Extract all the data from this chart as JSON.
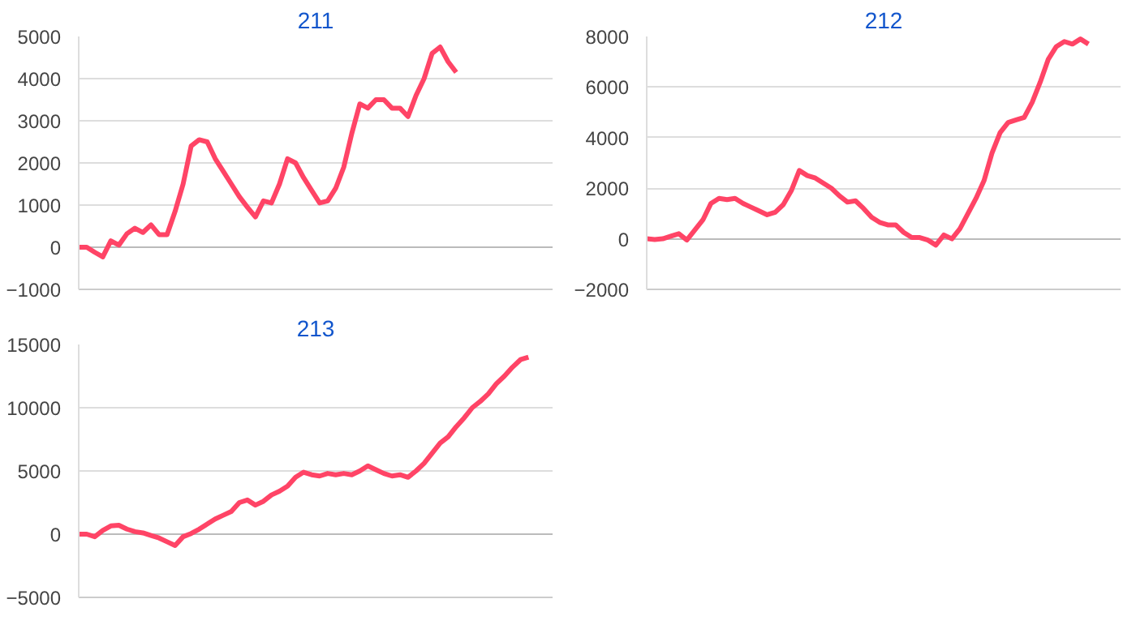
{
  "chart_data": [
    {
      "type": "line",
      "title": "211",
      "categories": [
        null,
        null,
        null,
        null,
        null,
        null,
        null,
        null,
        null,
        null,
        null,
        null,
        null,
        null,
        null,
        null,
        null,
        null,
        null,
        null,
        null,
        null,
        null,
        null,
        null,
        null,
        null,
        null,
        null,
        null,
        null,
        null,
        null,
        null,
        null,
        null,
        null,
        null,
        null,
        null,
        null,
        null,
        null,
        null,
        null,
        null,
        null,
        null,
        null,
        null,
        null,
        null,
        null,
        null,
        null,
        null,
        null,
        null,
        null,
        null
      ],
      "values": [
        0,
        0,
        -120,
        -230,
        150,
        50,
        320,
        450,
        350,
        530,
        300,
        300,
        850,
        1500,
        2400,
        2550,
        2500,
        2100,
        1800,
        1500,
        1200,
        950,
        720,
        1100,
        1050,
        1500,
        2100,
        2000,
        1650,
        1350,
        1050,
        1100,
        1400,
        1900,
        2700,
        3400,
        3300,
        3500,
        3500,
        3300,
        3300,
        3100,
        3600,
        4000,
        4600,
        4750,
        4400,
        4150,
        null,
        null,
        null,
        null,
        null,
        null,
        null,
        null,
        null,
        null,
        null,
        null
      ],
      "color": "#ff4466",
      "ylim": [
        -1000,
        5000
      ],
      "yticks": [
        -1000,
        0,
        1000,
        2000,
        3000,
        4000,
        5000
      ],
      "grid": "y"
    },
    {
      "type": "line",
      "title": "212",
      "categories": [
        null,
        null,
        null,
        null,
        null,
        null,
        null,
        null,
        null,
        null,
        null,
        null,
        null,
        null,
        null,
        null,
        null,
        null,
        null,
        null,
        null,
        null,
        null,
        null,
        null,
        null,
        null,
        null,
        null,
        null,
        null,
        null,
        null,
        null,
        null,
        null,
        null,
        null,
        null,
        null,
        null,
        null,
        null,
        null,
        null,
        null,
        null,
        null,
        null,
        null,
        null,
        null,
        null,
        null,
        null,
        null,
        null,
        null,
        null,
        null
      ],
      "values": [
        0,
        -30,
        0,
        100,
        200,
        -50,
        350,
        750,
        1400,
        1600,
        1550,
        1600,
        1400,
        1250,
        1100,
        950,
        1050,
        1350,
        1900,
        2700,
        2500,
        2400,
        2200,
        2000,
        1700,
        1450,
        1500,
        1200,
        850,
        650,
        550,
        550,
        250,
        50,
        50,
        -50,
        -250,
        150,
        0,
        400,
        1000,
        1600,
        2300,
        3400,
        4200,
        4600,
        4700,
        4800,
        5400,
        6200,
        7100,
        7600,
        7800,
        7700,
        7900,
        7700,
        null,
        null,
        null,
        null
      ],
      "color": "#ff4466",
      "ylim": [
        -2000,
        8000
      ],
      "yticks": [
        -2000,
        0,
        2000,
        4000,
        6000,
        8000
      ],
      "grid": "y"
    },
    {
      "type": "line",
      "title": "213",
      "categories": [
        null,
        null,
        null,
        null,
        null,
        null,
        null,
        null,
        null,
        null,
        null,
        null,
        null,
        null,
        null,
        null,
        null,
        null,
        null,
        null,
        null,
        null,
        null,
        null,
        null,
        null,
        null,
        null,
        null,
        null,
        null,
        null,
        null,
        null,
        null,
        null,
        null,
        null,
        null,
        null,
        null,
        null,
        null,
        null,
        null,
        null,
        null,
        null,
        null,
        null,
        null,
        null,
        null,
        null,
        null,
        null,
        null,
        null,
        null,
        null
      ],
      "values": [
        0,
        0,
        -200,
        300,
        650,
        700,
        400,
        200,
        100,
        -100,
        -300,
        -600,
        -900,
        -200,
        50,
        400,
        800,
        1200,
        1500,
        1800,
        2500,
        2700,
        2300,
        2600,
        3100,
        3400,
        3800,
        4500,
        4900,
        4700,
        4600,
        4800,
        4700,
        4800,
        4700,
        5000,
        5400,
        5100,
        4800,
        4600,
        4700,
        4500,
        5000,
        5600,
        6400,
        7200,
        7700,
        8500,
        9200,
        10000,
        10500,
        11100,
        11900,
        12500,
        13200,
        13800,
        14000,
        null,
        null,
        null
      ],
      "color": "#ff4466",
      "ylim": [
        -5000,
        15000
      ],
      "yticks": [
        -5000,
        0,
        5000,
        10000,
        15000
      ],
      "grid": "y"
    }
  ]
}
